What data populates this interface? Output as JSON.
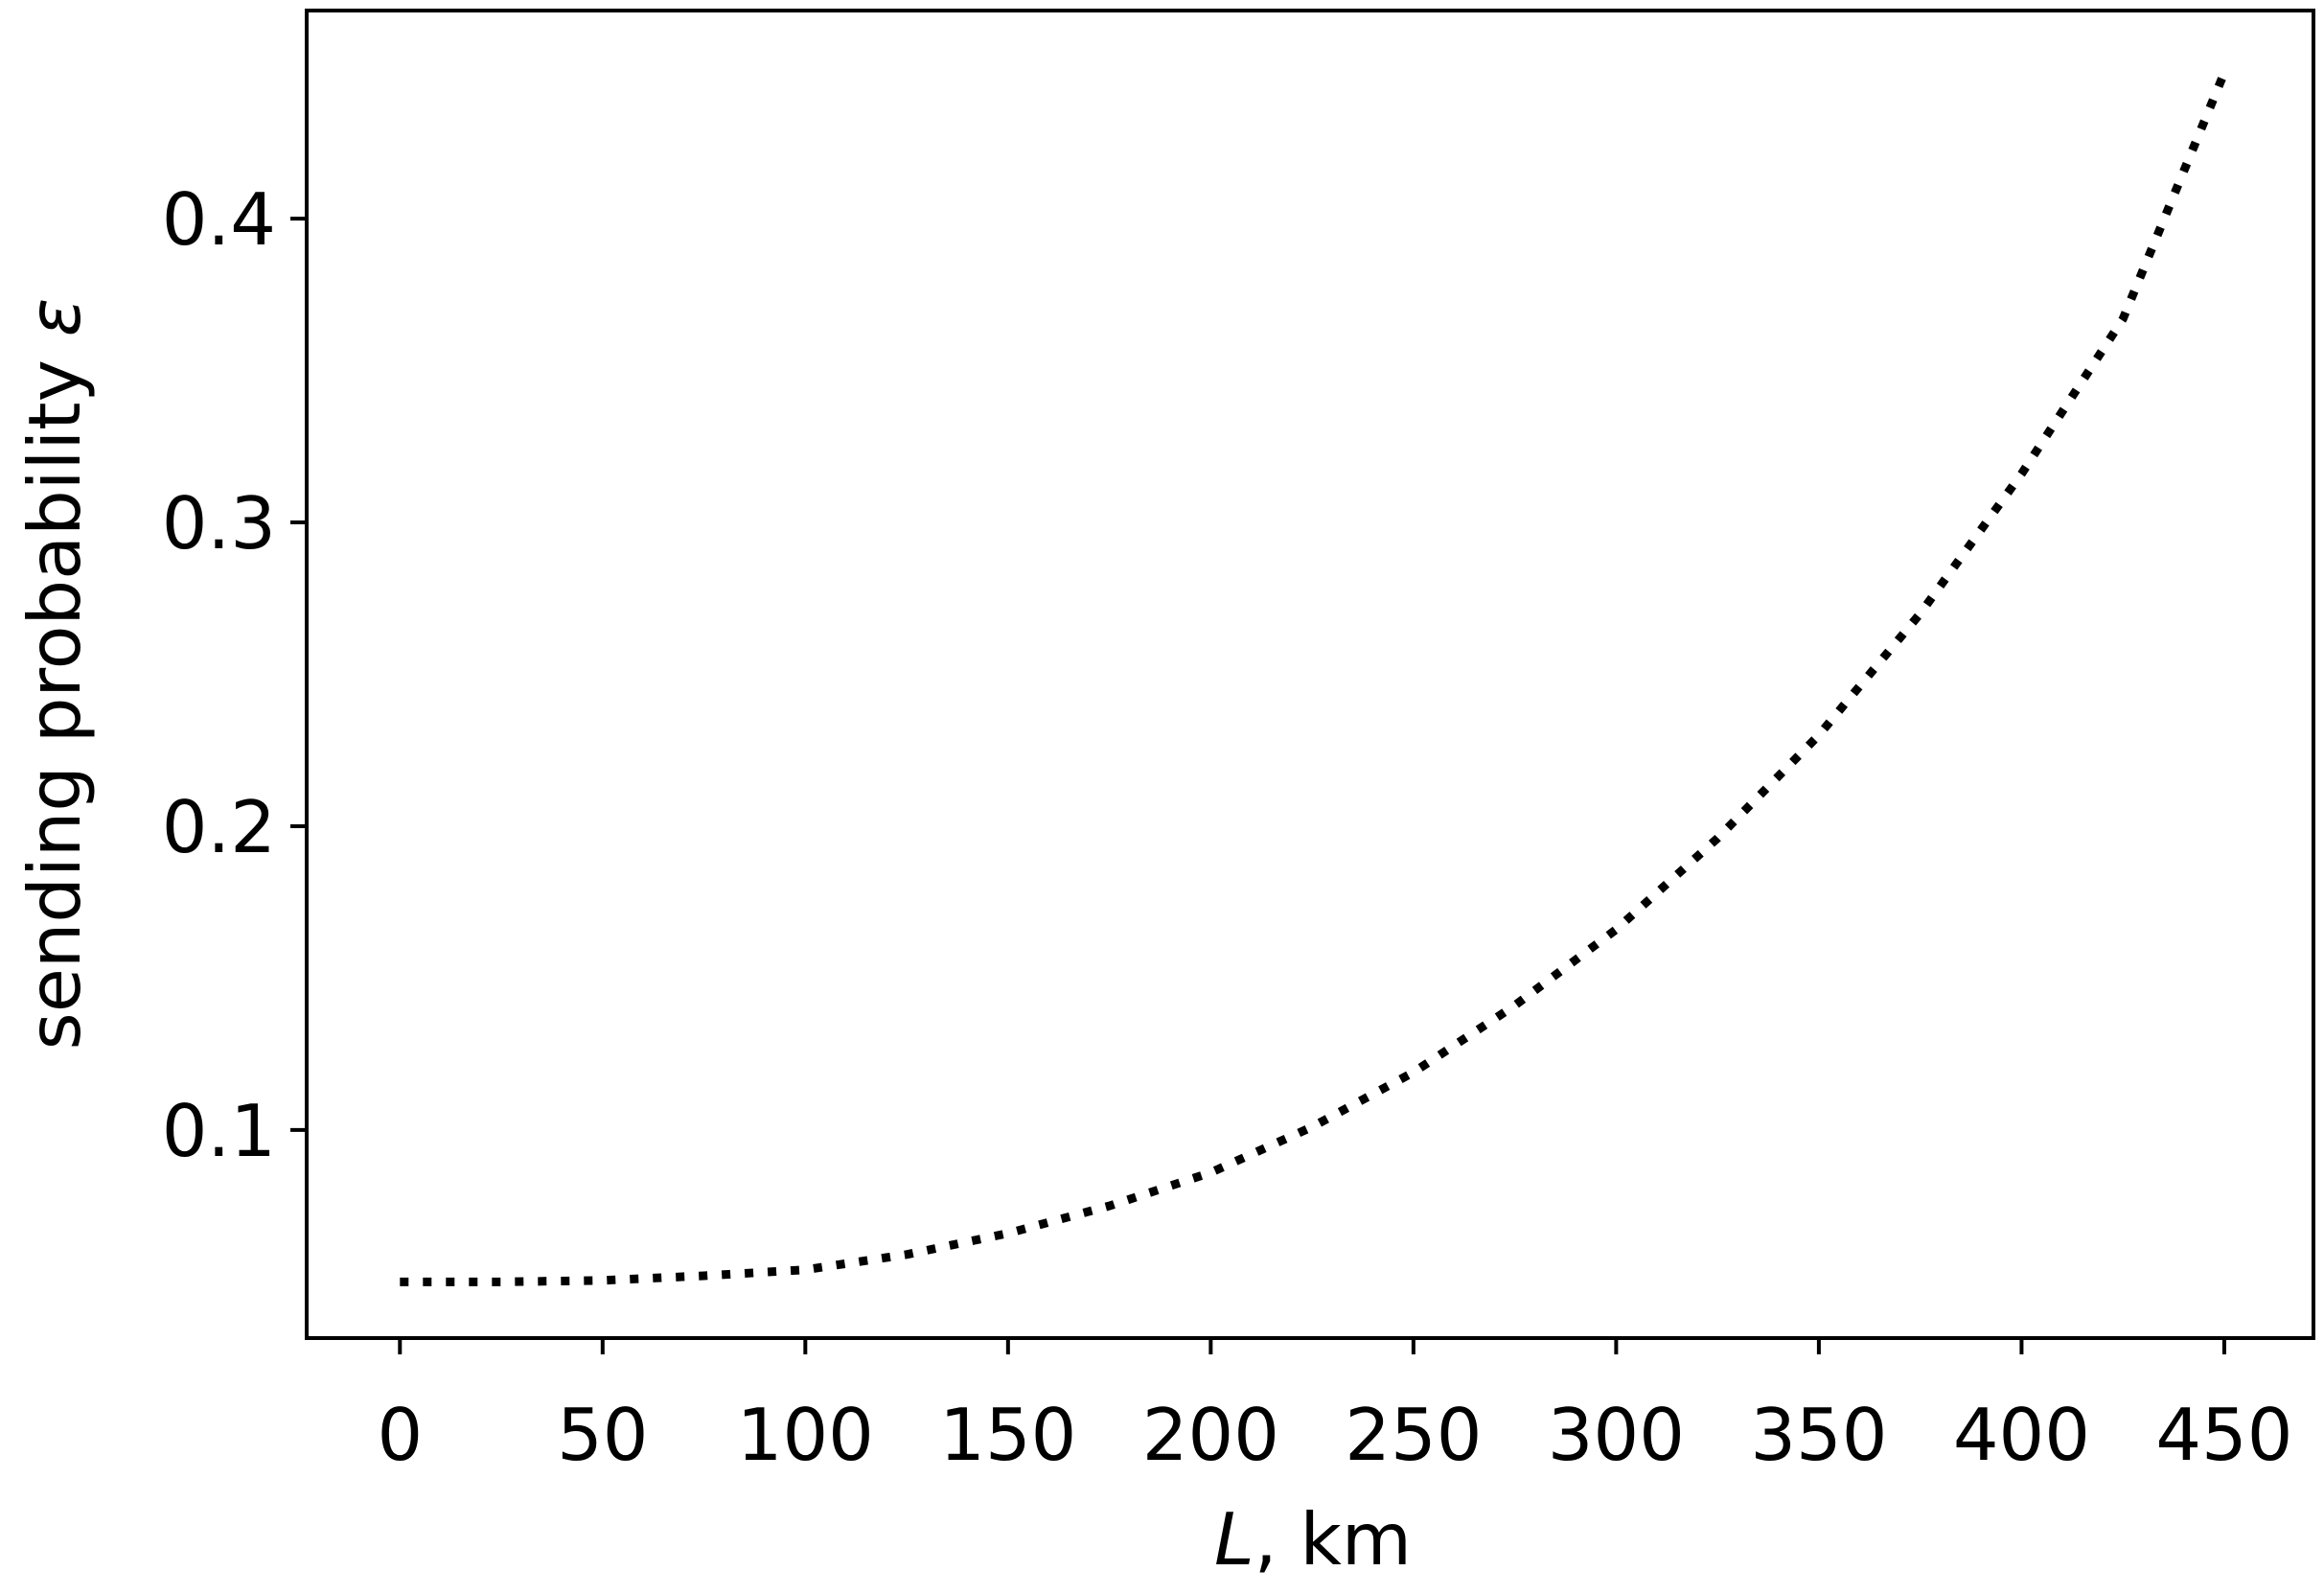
{
  "chart_data": {
    "type": "line",
    "title": "",
    "xlabel_var": "L",
    "xlabel_unit": ", km",
    "ylabel_text": "sending probability ",
    "ylabel_var": "ε",
    "xlim": [
      -23,
      472
    ],
    "ylim": [
      0.0315,
      0.4685
    ],
    "xticks": [
      0,
      50,
      100,
      150,
      200,
      250,
      300,
      350,
      400,
      450
    ],
    "xtick_labels": [
      "0",
      "50",
      "100",
      "150",
      "200",
      "250",
      "300",
      "350",
      "400",
      "450"
    ],
    "yticks": [
      0.1,
      0.2,
      0.3,
      0.4
    ],
    "ytick_labels": [
      "0.1",
      "0.2",
      "0.3",
      "0.4"
    ],
    "grid": false,
    "legend": "none",
    "series": [
      {
        "style": "dotted",
        "color": "#000000",
        "x": [
          0,
          25,
          50,
          75,
          100,
          125,
          150,
          175,
          200,
          225,
          250,
          275,
          300,
          325,
          350,
          375,
          400,
          425,
          450
        ],
        "y": [
          0.05,
          0.05,
          0.0505,
          0.052,
          0.054,
          0.059,
          0.066,
          0.075,
          0.086,
          0.101,
          0.119,
          0.141,
          0.166,
          0.196,
          0.23,
          0.27,
          0.316,
          0.367,
          0.448
        ]
      }
    ]
  }
}
